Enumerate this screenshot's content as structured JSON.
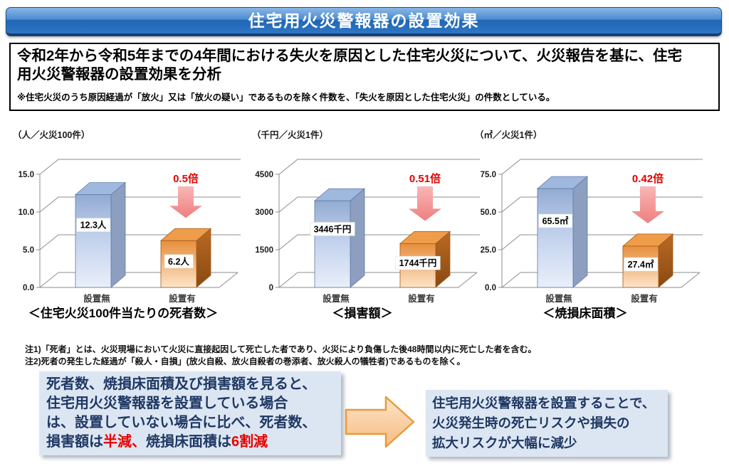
{
  "header": {
    "title": "住宅用火災警報器の設置効果"
  },
  "intro": {
    "main_lines": [
      "令和2年から令和5年までの4年間における失火を原因とした住宅火災について、火災報告を基に、住宅",
      "用火災警報器の設置効果を分析"
    ],
    "note": "※住宅火災のうち原因経過が「放火」又は「放火の疑い」であるものを除く件数を、「失火を原因とした住宅火災」の件数としている。"
  },
  "chart_data": [
    {
      "type": "bar",
      "title": "＜住宅火災100件当たりの死者数＞",
      "unit": "（人／火災100件）",
      "categories": [
        "設置無",
        "設置有"
      ],
      "values": [
        12.3,
        6.2
      ],
      "value_labels": [
        "12.3人",
        "6.2人"
      ],
      "multiplier": "0.5倍",
      "yticks": [
        "0.0",
        "5.0",
        "10.0",
        "15.0"
      ],
      "ylim": [
        0,
        15
      ],
      "grid": true,
      "legend": "none"
    },
    {
      "type": "bar",
      "title": "＜損害額＞",
      "unit": "（千円／火災1件）",
      "categories": [
        "設置無",
        "設置有"
      ],
      "values": [
        3446,
        1744
      ],
      "value_labels": [
        "3446千円",
        "1744千円"
      ],
      "multiplier": "0.51倍",
      "yticks": [
        "0",
        "1500",
        "3000",
        "4500"
      ],
      "ylim": [
        0,
        4500
      ],
      "grid": true,
      "legend": "none"
    },
    {
      "type": "bar",
      "title": "＜焼損床面積＞",
      "unit": "（㎡／火災1件）",
      "categories": [
        "設置無",
        "設置有"
      ],
      "values": [
        65.5,
        27.4
      ],
      "value_labels": [
        "65.5㎡",
        "27.4㎡"
      ],
      "multiplier": "0.42倍",
      "yticks": [
        "0.0",
        "25.0",
        "50.0",
        "75.0"
      ],
      "ylim": [
        0,
        75
      ],
      "grid": true,
      "legend": "none"
    }
  ],
  "notes": [
    "注1)「死者」とは、火災現場において火災に直接起因して死亡した者であり、火災により負傷した後48時間以内に死亡した者を含む。",
    "注2)死者の発生した経過が「殺人・自損」(放火自殺、放火自殺者の巻添者、放火殺人の犠牲者)であるものを除く。"
  ],
  "conclusion": {
    "left_lines": [
      [
        {
          "t": "死者数、焼損床面積及び損害額を見ると、"
        }
      ],
      [
        {
          "t": "住宅用火災警報器を設置している場合"
        }
      ],
      [
        {
          "t": "は、設置していない場合に比べ、死者数、"
        }
      ],
      [
        {
          "t": "損害額は"
        },
        {
          "t": "半減、",
          "red": true
        },
        {
          "t": "焼損床面積は"
        },
        {
          "t": "6割減",
          "red": true
        }
      ]
    ],
    "right_lines": [
      "住宅用火災警報器を設置することで、",
      "火災発生時の死亡リスクや損失の",
      "拡大リスクが大幅に減少"
    ]
  },
  "colors": {
    "header_blue": "#2f77c5",
    "grid": "#8c8c8c",
    "bar_blue_front_top": "#93abd3",
    "bar_blue_front_bottom": "#e9effa",
    "bar_blue_top": "#9fb8de",
    "bar_blue_side": "#8d9fc0",
    "bar_blue_edge": "#5f7aa8",
    "bar_orange_front_top": "#e78f3c",
    "bar_orange_front_bottom": "#fce4c9",
    "bar_orange_top": "#ef9d4a",
    "bar_orange_side_top": "#b96a24",
    "bar_orange_side_bottom": "#8a4a12",
    "bar_orange_edge": "#a05a18",
    "multiplier_red": "#e60000",
    "arrow_pink_top": "#f9b6b6",
    "arrow_pink_bottom": "#ee7f7f",
    "navy": "#1f3864",
    "red_text": "#e80000",
    "box_bg": "#dce6f2",
    "big_arrow_fill_top": "#fde3c8",
    "big_arrow_fill_bottom": "#f6bd83",
    "big_arrow_stroke": "#e89b3c"
  }
}
